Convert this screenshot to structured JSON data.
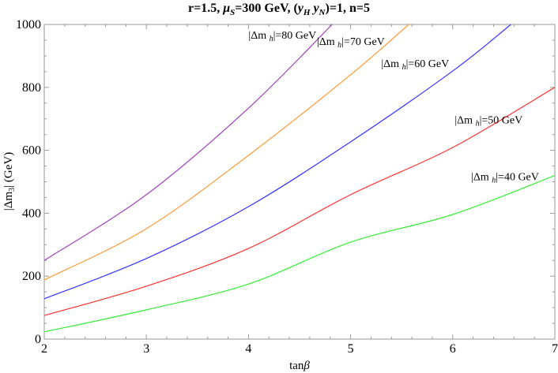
{
  "chart_data": {
    "type": "line",
    "title": "r=1.5, μS=300 GeV, (yH yN)=1, n=5",
    "title_parts": {
      "prefix": "r=1.5, ",
      "mu": "μ",
      "mu_sub": "S",
      "mid": "=300 GeV, (",
      "yh": "y",
      "yh_sub": "H",
      "yn": "y",
      "yn_sub": "N",
      "suffix": ")=1, n=5"
    },
    "xlabel": "tanβ",
    "ylabel": "|Δm3| (GeV)",
    "xlim": [
      2,
      7
    ],
    "ylim": [
      0,
      1000
    ],
    "xticks": [
      2,
      3,
      4,
      5,
      6,
      7
    ],
    "yticks": [
      0,
      200,
      400,
      600,
      800,
      1000
    ],
    "grid": false,
    "legend_position": "inline labels",
    "series": [
      {
        "name": "|Δmh|=80 GeV",
        "color": "#a040c0",
        "x": [
          2,
          3,
          4,
          4.82
        ],
        "values": [
          250,
          459,
          734,
          1000
        ],
        "label_pos": [
          4.0,
          955
        ]
      },
      {
        "name": "|Δmh|=70 GeV",
        "color": "#ff9933",
        "x": [
          2,
          3,
          4,
          5,
          5.57
        ],
        "values": [
          188,
          351,
          584,
          840,
          1000
        ],
        "label_pos": [
          4.67,
          935
        ]
      },
      {
        "name": "|Δmh|=60 GeV",
        "color": "#3333ff",
        "x": [
          2,
          3,
          4,
          5,
          6,
          6.57
        ],
        "values": [
          128,
          256,
          421,
          627,
          852,
          1000
        ],
        "label_pos": [
          5.3,
          865
        ]
      },
      {
        "name": "|Δmh|=50 GeV",
        "color": "#ff3333",
        "x": [
          2,
          3,
          4,
          5,
          6,
          7
        ],
        "values": [
          75,
          168,
          288,
          459,
          609,
          800
        ],
        "label_pos": [
          6.02,
          685
        ]
      },
      {
        "name": "|Δmh|=40 GeV",
        "color": "#33ee33",
        "x": [
          2,
          3,
          4,
          5,
          6,
          7
        ],
        "values": [
          23,
          93,
          175,
          308,
          396,
          520
        ],
        "label_pos": [
          6.18,
          505
        ]
      }
    ]
  }
}
